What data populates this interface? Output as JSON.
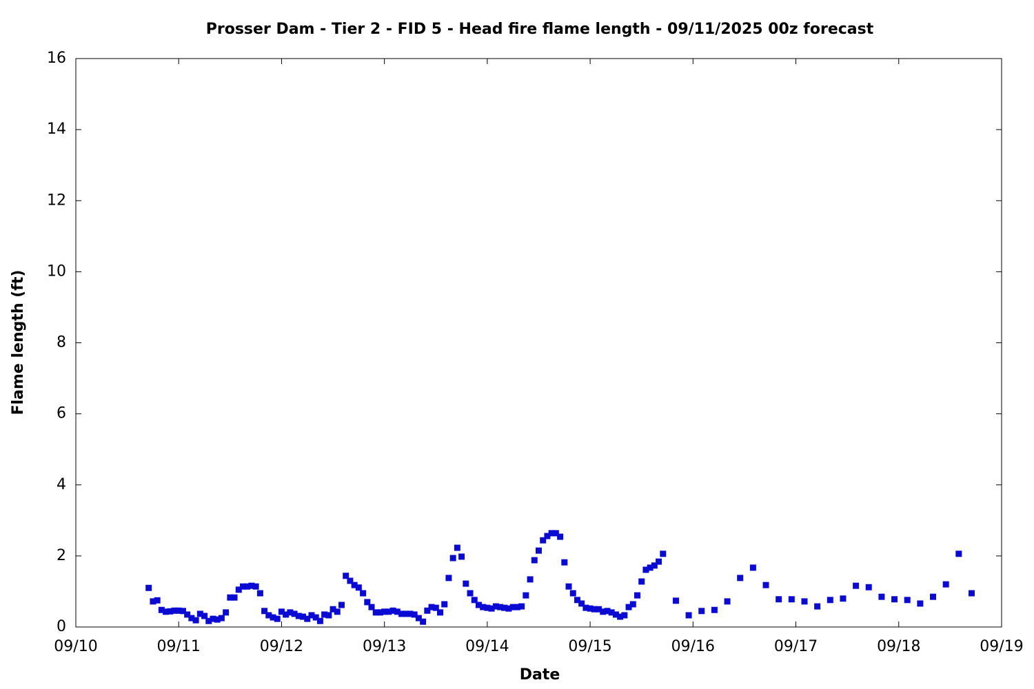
{
  "chart_data": {
    "type": "scatter",
    "title": "Prosser Dam - Tier 2 - FID 5 - Head fire flame length - 09/11/2025 00z forecast",
    "x_label": "Date",
    "y_label": "Flame length (ft)",
    "xlim": [
      0,
      216
    ],
    "xticks": [
      {
        "value": 0,
        "label": "09/10"
      },
      {
        "value": 24,
        "label": "09/11"
      },
      {
        "value": 48,
        "label": "09/12"
      },
      {
        "value": 72,
        "label": "09/13"
      },
      {
        "value": 96,
        "label": "09/14"
      },
      {
        "value": 120,
        "label": "09/15"
      },
      {
        "value": 144,
        "label": "09/16"
      },
      {
        "value": 168,
        "label": "09/17"
      },
      {
        "value": 192,
        "label": "09/18"
      },
      {
        "value": 216,
        "label": "09/19"
      }
    ],
    "ylim": [
      0,
      16
    ],
    "yticks": [
      0,
      2,
      4,
      6,
      8,
      10,
      12,
      14,
      16
    ],
    "grid": false,
    "series": [
      {
        "color": "#0a0ad2",
        "x": [
          17,
          18,
          19,
          20,
          21,
          22,
          23,
          24,
          25,
          26,
          27,
          28,
          29,
          30,
          31,
          32,
          33,
          34,
          35,
          36,
          37,
          38,
          39,
          40,
          41,
          42,
          43,
          44,
          45,
          46,
          47,
          48,
          49,
          50,
          51,
          52,
          53,
          54,
          55,
          56,
          57,
          58,
          59,
          60,
          61,
          62,
          63,
          64,
          65,
          66,
          67,
          68,
          69,
          70,
          71,
          72,
          73,
          74,
          75,
          76,
          77,
          78,
          79,
          80,
          81,
          82,
          83,
          84,
          85,
          86,
          87,
          88,
          89,
          90,
          91,
          92,
          93,
          94,
          95,
          96,
          97,
          98,
          99,
          100,
          101,
          102,
          103,
          104,
          105,
          106,
          107,
          108,
          109,
          110,
          111,
          112,
          113,
          114,
          115,
          116,
          117,
          118,
          119,
          120,
          121,
          122,
          123,
          124,
          125,
          126,
          127,
          128,
          129,
          130,
          131,
          132,
          133,
          134,
          135,
          136,
          137,
          140,
          143,
          146,
          149,
          152,
          155,
          158,
          161,
          164,
          167,
          170,
          173,
          176,
          179,
          182,
          185,
          188,
          191,
          194,
          197,
          200,
          203,
          206,
          209
        ],
        "values": [
          1.1,
          0.72,
          0.75,
          0.48,
          0.43,
          0.44,
          0.46,
          0.46,
          0.45,
          0.35,
          0.25,
          0.19,
          0.37,
          0.31,
          0.17,
          0.23,
          0.21,
          0.25,
          0.41,
          0.83,
          0.83,
          1.05,
          1.14,
          1.14,
          1.16,
          1.14,
          0.95,
          0.45,
          0.33,
          0.27,
          0.23,
          0.43,
          0.35,
          0.41,
          0.37,
          0.31,
          0.29,
          0.23,
          0.33,
          0.27,
          0.17,
          0.35,
          0.33,
          0.5,
          0.43,
          0.62,
          1.44,
          1.3,
          1.18,
          1.11,
          0.95,
          0.7,
          0.56,
          0.41,
          0.41,
          0.43,
          0.43,
          0.46,
          0.43,
          0.37,
          0.37,
          0.37,
          0.35,
          0.25,
          0.15,
          0.46,
          0.56,
          0.54,
          0.41,
          0.64,
          1.38,
          1.94,
          2.23,
          1.98,
          1.22,
          0.95,
          0.76,
          0.62,
          0.56,
          0.54,
          0.52,
          0.58,
          0.56,
          0.54,
          0.52,
          0.56,
          0.56,
          0.58,
          0.89,
          1.34,
          1.88,
          2.15,
          2.44,
          2.56,
          2.64,
          2.64,
          2.54,
          1.82,
          1.14,
          0.95,
          0.76,
          0.66,
          0.54,
          0.52,
          0.5,
          0.5,
          0.43,
          0.45,
          0.41,
          0.35,
          0.29,
          0.33,
          0.56,
          0.64,
          0.89,
          1.28,
          1.61,
          1.67,
          1.73,
          1.84,
          2.06,
          0.74,
          0.33,
          0.45,
          0.48,
          0.72,
          1.38,
          1.67,
          1.18,
          0.78,
          0.78,
          0.72,
          0.58,
          0.76,
          0.8,
          1.16,
          1.12,
          0.85,
          0.78,
          0.76,
          0.66,
          0.85,
          1.2,
          2.06,
          0.95
        ]
      }
    ]
  }
}
